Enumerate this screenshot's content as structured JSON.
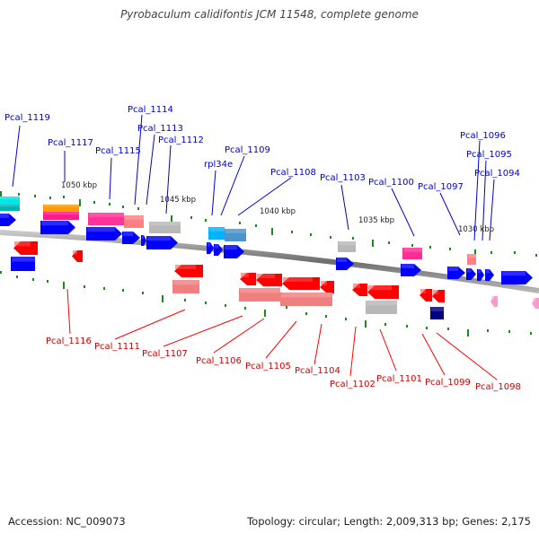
{
  "title": "Pyrobaculum calidifontis JCM 11548, complete genome",
  "footer": {
    "accession": "Accession: NC_009073",
    "topology": "Topology: circular; Length: 2,009,313 bp; Genes: 2,175"
  },
  "colors": {
    "forward_label": "#0000cc",
    "reverse_label": "#cc0000",
    "backbone": "#8c8c8c",
    "tick": "#1a8a1a"
  },
  "position_labels": [
    "1050 kbp",
    "1045 kbp",
    "1040 kbp",
    "1035 kbp",
    "1030 kbp"
  ],
  "forward_labels": [
    "Pcal_1119",
    "Pcal_1117",
    "Pcal_1115",
    "Pcal_1114",
    "Pcal_1113",
    "Pcal_1112",
    "rpl34e",
    "Pcal_1109",
    "Pcal_1108",
    "Pcal_1103",
    "Pcal_1100",
    "Pcal_1097",
    "Pcal_1096",
    "Pcal_1095",
    "Pcal_1094"
  ],
  "reverse_labels": [
    "Pcal_1116",
    "Pcal_1111",
    "Pcal_1107",
    "Pcal_1106",
    "Pcal_1105",
    "Pcal_1104",
    "Pcal_1102",
    "Pcal_1101",
    "Pcal_1099",
    "Pcal_1098"
  ]
}
